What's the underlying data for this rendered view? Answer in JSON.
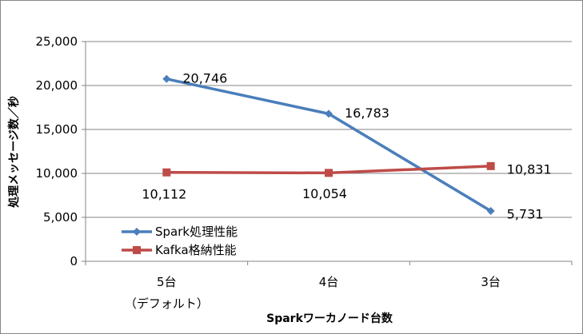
{
  "chart_data": {
    "type": "line",
    "categories": [
      "5台",
      "4台",
      "3台"
    ],
    "category_sublabels": [
      "（デフォルト）",
      "",
      ""
    ],
    "xlabel": "Sparkワーカノード台数",
    "ylabel": "処理メッセージ数／秒",
    "ylim": [
      0,
      25000
    ],
    "yticks": [
      "0",
      "5,000",
      "10,000",
      "15,000",
      "20,000",
      "25,000"
    ],
    "grid": true,
    "legend_position": "lower-left",
    "series": [
      {
        "name": "Spark処理性能",
        "values": [
          20746,
          16783,
          5731
        ],
        "labels": [
          "20,746",
          "16,783",
          "5,731"
        ],
        "color": "#4a7ebb",
        "marker": "diamond"
      },
      {
        "name": "Kafka格納性能",
        "values": [
          10112,
          10054,
          10831
        ],
        "labels": [
          "10,112",
          "10,054",
          "10,831"
        ],
        "color": "#be4b48",
        "marker": "square"
      }
    ]
  }
}
